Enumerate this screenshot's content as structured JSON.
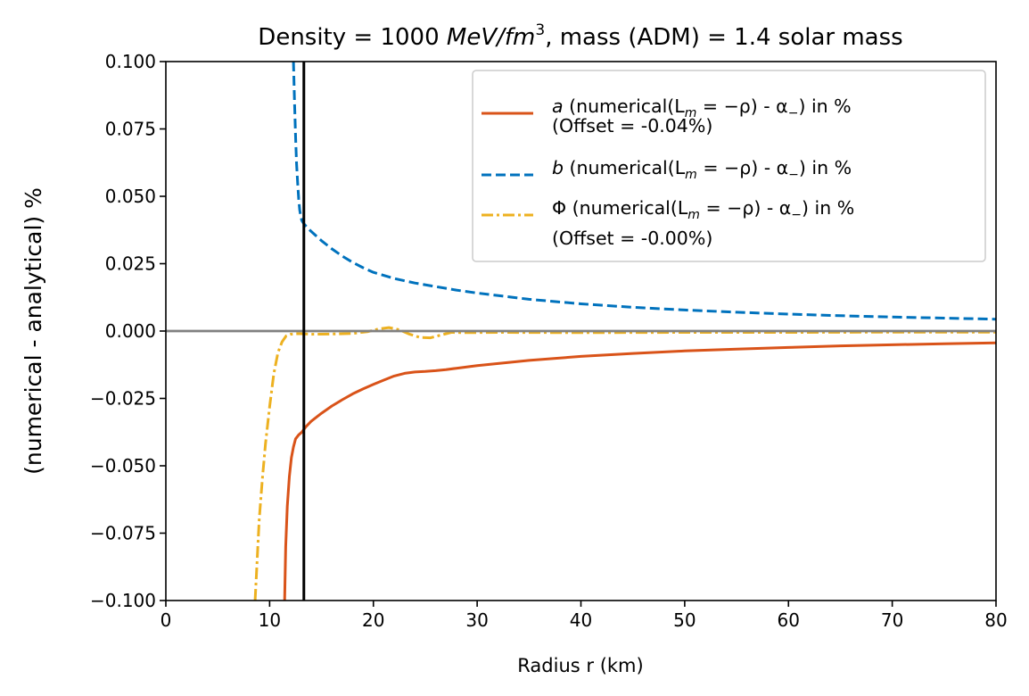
{
  "chart_data": {
    "type": "line",
    "title": {
      "prefix": "Density = 1000 ",
      "unit_math": "MeV/fm",
      "unit_exponent": "3",
      "suffix": ", mass (ADM) = 1.4 solar mass"
    },
    "xlabel": "Radius r (km)",
    "ylabel": "(numerical - analytical) %",
    "xlim": [
      0,
      80
    ],
    "ylim": [
      -0.1,
      0.1
    ],
    "x_ticks": [
      0,
      10,
      20,
      30,
      40,
      50,
      60,
      70,
      80
    ],
    "x_tick_labels": [
      "0",
      "10",
      "20",
      "30",
      "40",
      "50",
      "60",
      "70",
      "80"
    ],
    "y_ticks": [
      0.1,
      0.075,
      0.05,
      0.025,
      0.0,
      -0.025,
      -0.05,
      -0.075,
      -0.1
    ],
    "y_tick_labels": [
      "0.100",
      "0.075",
      "0.050",
      "0.025",
      "0.000",
      "−0.025",
      "−0.050",
      "−0.075",
      "−0.100"
    ],
    "grid": false,
    "legend_position": "top-right",
    "reference_lines": [
      {
        "name": "zero-line",
        "orientation": "horizontal",
        "value": 0.0,
        "color": "#808080"
      },
      {
        "name": "star-surface",
        "orientation": "vertical",
        "value": 13.3,
        "color": "#000000"
      }
    ],
    "series": [
      {
        "name": "a",
        "style": "solid",
        "color": "#d95319",
        "legend": {
          "symbol": "a",
          "text": " (numerical(L",
          "sub_m": "m",
          "eq": " = −ρ) - α",
          "sub_minus": "−",
          "tail": ") in %",
          "line2": "(Offset = -0.04%)"
        },
        "x": [
          11.45,
          11.55,
          11.7,
          11.9,
          12.1,
          12.3,
          12.5,
          12.8,
          13.1,
          13.5,
          14.0,
          15.0,
          16.0,
          17.0,
          18.0,
          19.0,
          20.0,
          21.0,
          22.0,
          23.0,
          24.0,
          25.0,
          26.0,
          27.0,
          28.0,
          30.0,
          35.0,
          40.0,
          45.0,
          50.0,
          55.0,
          60.0,
          65.0,
          70.0,
          75.0,
          80.0
        ],
        "values": [
          -0.1,
          -0.08,
          -0.065,
          -0.054,
          -0.047,
          -0.043,
          -0.04,
          -0.0385,
          -0.0375,
          -0.0355,
          -0.0335,
          -0.0305,
          -0.0278,
          -0.0255,
          -0.0233,
          -0.0215,
          -0.0198,
          -0.0182,
          -0.0167,
          -0.0157,
          -0.0152,
          -0.015,
          -0.0147,
          -0.0143,
          -0.0138,
          -0.0128,
          -0.0109,
          -0.0094,
          -0.0083,
          -0.0074,
          -0.0067,
          -0.0061,
          -0.0055,
          -0.0051,
          -0.0047,
          -0.0044
        ]
      },
      {
        "name": "b",
        "style": "dashed",
        "color": "#0072bd",
        "legend": {
          "symbol": "b",
          "text": " (numerical(L",
          "sub_m": "m",
          "eq": " = −ρ) - α",
          "sub_minus": "−",
          "tail": ") in %",
          "line2": ""
        },
        "x": [
          12.3,
          12.4,
          12.5,
          12.6,
          12.7,
          12.8,
          12.9,
          13.0,
          13.1,
          13.3,
          13.6,
          14.0,
          15.0,
          16.0,
          17.0,
          18.0,
          19.0,
          20.0,
          22.0,
          24.0,
          26.0,
          28.0,
          30.0,
          35.0,
          40.0,
          45.0,
          50.0,
          55.0,
          60.0,
          65.0,
          70.0,
          75.0,
          80.0
        ],
        "values": [
          0.1,
          0.085,
          0.072,
          0.062,
          0.055,
          0.049,
          0.045,
          0.0425,
          0.041,
          0.0398,
          0.0385,
          0.037,
          0.0335,
          0.0305,
          0.0278,
          0.0255,
          0.0235,
          0.0218,
          0.0195,
          0.0178,
          0.0165,
          0.0152,
          0.0141,
          0.0118,
          0.0101,
          0.0088,
          0.0078,
          0.007,
          0.0063,
          0.0057,
          0.0052,
          0.0048,
          0.0044
        ]
      },
      {
        "name": "Phi",
        "style": "dashdot",
        "color": "#edb120",
        "legend": {
          "symbol": "Φ",
          "text": " (numerical(L",
          "sub_m": "m",
          "eq": " = −ρ) - α",
          "sub_minus": "−",
          "tail": ") in %",
          "line2": "(Offset = -0.00%)"
        },
        "x": [
          8.6,
          8.8,
          9.0,
          9.3,
          9.6,
          10.0,
          10.4,
          10.8,
          11.2,
          11.6,
          12.0,
          12.5,
          13.0,
          14.0,
          16.0,
          18.0,
          19.5,
          20.5,
          21.5,
          22.5,
          23.5,
          24.5,
          25.5,
          26.5,
          27.5,
          29.0,
          32.0,
          40.0,
          50.0,
          60.0,
          70.0,
          80.0
        ],
        "values": [
          -0.1,
          -0.085,
          -0.07,
          -0.055,
          -0.042,
          -0.028,
          -0.016,
          -0.008,
          -0.004,
          -0.0018,
          -0.0012,
          -0.001,
          -0.001,
          -0.0012,
          -0.0011,
          -0.0009,
          -0.0002,
          0.0008,
          0.0013,
          0.0005,
          -0.0012,
          -0.0024,
          -0.0025,
          -0.0015,
          -0.0005,
          -0.0006,
          -0.0005,
          -0.0006,
          -0.0005,
          -0.0005,
          -0.0004,
          -0.0004
        ]
      }
    ]
  }
}
